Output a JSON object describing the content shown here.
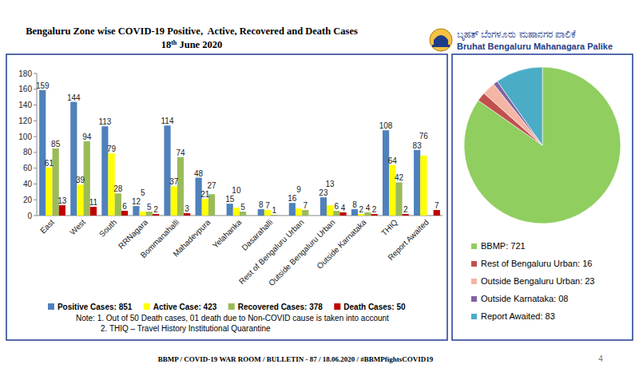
{
  "header": {
    "logo_kannada": "ಬೃಹತ್ ಬೆಂಗಳೂರು ಮಹಾನಗರ ಪಾಲಿಕೆ",
    "logo_english": "Bruhat Bengaluru Mahanagara Palike"
  },
  "chart_data": [
    {
      "type": "bar",
      "title": "Bengaluru Zone wise COVID-19 Positive,  Active, Recovered and Death Cases",
      "subtitle": "18th June 2020",
      "categories": [
        "East",
        "West",
        "South",
        "RRNagara",
        "Bommanahalli",
        "Mahadevpura",
        "Yelahanka",
        "Dasarahalli",
        "Rest of Bengaluru Urban",
        "Outside Bengaluru Urban",
        "Outside Karnataka",
        "THIQ",
        "Report Awaited"
      ],
      "series": [
        {
          "name": "Positive Cases: 851",
          "color": "#4f81bd",
          "values": [
            159,
            144,
            113,
            12,
            114,
            48,
            15,
            8,
            16,
            23,
            8,
            108,
            83
          ]
        },
        {
          "name": "Active Case: 423",
          "color": "#ffff00",
          "values": [
            61,
            39,
            79,
            5,
            37,
            21,
            10,
            7,
            9,
            13,
            2,
            64,
            76
          ]
        },
        {
          "name": "Recovered Cases: 378",
          "color": "#9bbb59",
          "values": [
            85,
            94,
            28,
            5,
            74,
            27,
            5,
            1,
            7,
            6,
            4,
            42,
            null
          ]
        },
        {
          "name": "Death Cases: 50",
          "color": "#c00000",
          "values": [
            13,
            11,
            6,
            2,
            3,
            null,
            null,
            null,
            null,
            4,
            2,
            2,
            7
          ]
        }
      ],
      "ylim": [
        0,
        180
      ],
      "yticks": [
        0,
        20,
        40,
        60,
        80,
        100,
        120,
        140,
        160,
        180
      ],
      "grid": false,
      "legend": "bottom",
      "data_labels": true,
      "annotations": [
        "Note: 1. Out of 50 Death cases, 01 death due to Non-COVID cause is taken into account",
        "2. THIQ – Travel History Institutional Quarantine"
      ]
    },
    {
      "type": "pie",
      "categories": [
        "BBMP: 721",
        "Rest of Bengaluru Urban: 16",
        "Outside Bengaluru Urban: 23",
        "Outside Karnataka: 08",
        "Report Awaited: 83"
      ],
      "values": [
        721,
        16,
        23,
        8,
        83
      ],
      "colors": [
        "#8fce5f",
        "#c0504d",
        "#f4b5a4",
        "#8064a2",
        "#4bacc6"
      ],
      "legend": "bottom"
    }
  ],
  "footer": "BBMP / COVID-19 WAR ROOM / BULLETIN - 87 / 18.06.2020 / #BBMPfightsCOVID19",
  "page_number": 4
}
